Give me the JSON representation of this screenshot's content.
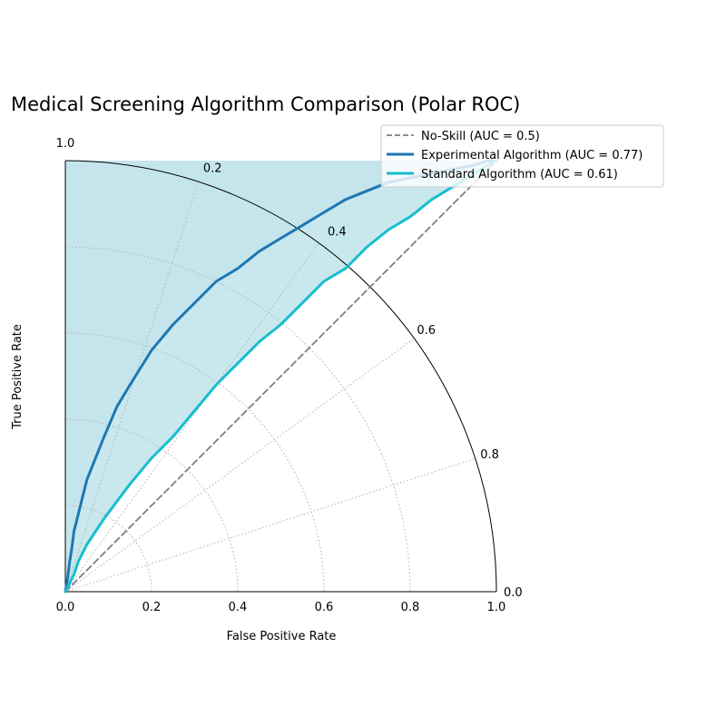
{
  "chart_data": {
    "type": "line",
    "title": "Medical Screening Algorithm Comparison (Polar ROC)",
    "xlabel": "False Positive Rate",
    "ylabel": "True Positive Rate",
    "radial_ticks": [
      "0.0",
      "0.2",
      "0.4",
      "0.6",
      "0.8",
      "1.0"
    ],
    "angular_ticks": [
      "0.0",
      "0.2",
      "0.4",
      "0.6",
      "0.8",
      "1.0"
    ],
    "xlim": [
      0,
      1
    ],
    "ylim": [
      0,
      1
    ],
    "grid": true,
    "legend_position": "top-right",
    "series": [
      {
        "name": "No-Skill (AUC = 0.5)",
        "color": "#7f7f7f",
        "style": "dashed",
        "x": [
          0.0,
          0.05,
          0.1,
          0.15,
          0.2,
          0.25,
          0.3,
          0.35,
          0.4,
          0.45,
          0.5,
          0.55,
          0.6,
          0.65,
          0.7,
          0.75,
          0.8,
          0.85,
          0.9,
          0.95,
          1.0
        ],
        "y": [
          0.0,
          0.05,
          0.1,
          0.15,
          0.2,
          0.25,
          0.3,
          0.35,
          0.4,
          0.45,
          0.5,
          0.55,
          0.6,
          0.65,
          0.7,
          0.75,
          0.8,
          0.85,
          0.9,
          0.95,
          1.0
        ]
      },
      {
        "name": "Experimental Algorithm (AUC = 0.77)",
        "color": "#1f77b4",
        "style": "solid",
        "fill": "#dce9f3",
        "x": [
          0.0,
          0.005,
          0.01,
          0.015,
          0.02,
          0.03,
          0.04,
          0.05,
          0.07,
          0.09,
          0.12,
          0.15,
          0.2,
          0.25,
          0.3,
          0.35,
          0.4,
          0.45,
          0.5,
          0.55,
          0.6,
          0.65,
          0.7,
          0.75,
          0.8,
          0.85,
          0.9,
          0.95,
          0.98,
          1.0
        ],
        "y": [
          0.0,
          0.03,
          0.07,
          0.1,
          0.14,
          0.18,
          0.22,
          0.26,
          0.31,
          0.36,
          0.43,
          0.48,
          0.56,
          0.62,
          0.67,
          0.72,
          0.75,
          0.79,
          0.82,
          0.85,
          0.88,
          0.91,
          0.93,
          0.95,
          0.96,
          0.97,
          0.98,
          0.99,
          1.0,
          1.0
        ]
      },
      {
        "name": "Standard Algorithm (AUC = 0.61)",
        "color": "#17becf",
        "style": "solid",
        "fill": "#c0e4ea",
        "x": [
          0.0,
          0.005,
          0.01,
          0.015,
          0.02,
          0.03,
          0.04,
          0.05,
          0.07,
          0.09,
          0.12,
          0.15,
          0.2,
          0.25,
          0.3,
          0.35,
          0.4,
          0.45,
          0.5,
          0.55,
          0.6,
          0.65,
          0.7,
          0.75,
          0.8,
          0.85,
          0.9,
          0.95,
          0.98,
          1.0
        ],
        "y": [
          0.0,
          0.01,
          0.02,
          0.03,
          0.04,
          0.07,
          0.09,
          0.11,
          0.14,
          0.17,
          0.21,
          0.25,
          0.31,
          0.36,
          0.42,
          0.48,
          0.53,
          0.58,
          0.62,
          0.67,
          0.72,
          0.75,
          0.8,
          0.84,
          0.87,
          0.91,
          0.94,
          0.97,
          0.99,
          1.0
        ]
      }
    ]
  }
}
